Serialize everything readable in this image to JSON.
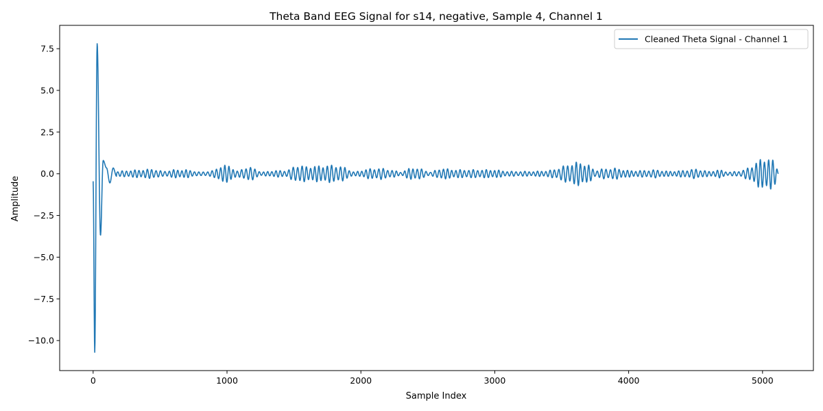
{
  "chart_data": {
    "type": "line",
    "title": "Theta Band EEG Signal for s14, negative, Sample 4, Channel 1",
    "xlabel": "Sample Index",
    "ylabel": "Amplitude",
    "xlim": [
      -250,
      5380
    ],
    "ylim": [
      -11.8,
      8.9
    ],
    "x_ticks": [
      0,
      1000,
      2000,
      3000,
      4000,
      5000
    ],
    "x_tick_labels": [
      "0",
      "1000",
      "2000",
      "3000",
      "4000",
      "5000"
    ],
    "y_ticks": [
      -10.0,
      -7.5,
      -5.0,
      -2.5,
      0.0,
      2.5,
      5.0,
      7.5
    ],
    "y_tick_labels": [
      "−10.0",
      "−7.5",
      "−5.0",
      "−2.5",
      "0.0",
      "2.5",
      "5.0",
      "7.5"
    ],
    "grid": false,
    "legend_position": "top-right",
    "series": [
      {
        "name": "Cleaned Theta Signal - Channel 1",
        "color": "#1f77b4",
        "x_range": [
          0,
          5119
        ],
        "n_points": 5120,
        "sampling": "approximate envelope reconstruction",
        "anchor_points": [
          [
            0,
            -0.45
          ],
          [
            12,
            -10.7
          ],
          [
            30,
            7.8
          ],
          [
            55,
            -3.7
          ],
          [
            75,
            0.8
          ],
          [
            100,
            0.35
          ],
          [
            125,
            -0.55
          ],
          [
            150,
            0.35
          ],
          [
            175,
            -0.15
          ]
        ],
        "oscillation_period_samples": 32,
        "envelope": [
          [
            180,
            0.15
          ],
          [
            250,
            0.2
          ],
          [
            350,
            0.25
          ],
          [
            450,
            0.3
          ],
          [
            520,
            0.15
          ],
          [
            600,
            0.25
          ],
          [
            700,
            0.25
          ],
          [
            800,
            0.1
          ],
          [
            900,
            0.2
          ],
          [
            960,
            0.55
          ],
          [
            1020,
            0.5
          ],
          [
            1080,
            0.15
          ],
          [
            1150,
            0.45
          ],
          [
            1200,
            0.35
          ],
          [
            1260,
            0.1
          ],
          [
            1350,
            0.2
          ],
          [
            1450,
            0.2
          ],
          [
            1520,
            0.55
          ],
          [
            1600,
            0.45
          ],
          [
            1700,
            0.5
          ],
          [
            1800,
            0.55
          ],
          [
            1880,
            0.4
          ],
          [
            1950,
            0.1
          ],
          [
            2050,
            0.3
          ],
          [
            2150,
            0.35
          ],
          [
            2250,
            0.2
          ],
          [
            2300,
            0.1
          ],
          [
            2380,
            0.4
          ],
          [
            2450,
            0.3
          ],
          [
            2520,
            0.1
          ],
          [
            2600,
            0.35
          ],
          [
            2700,
            0.25
          ],
          [
            2800,
            0.25
          ],
          [
            2900,
            0.25
          ],
          [
            3000,
            0.25
          ],
          [
            3100,
            0.15
          ],
          [
            3200,
            0.15
          ],
          [
            3300,
            0.15
          ],
          [
            3400,
            0.2
          ],
          [
            3460,
            0.3
          ],
          [
            3550,
            0.6
          ],
          [
            3630,
            0.75
          ],
          [
            3700,
            0.55
          ],
          [
            3750,
            0.2
          ],
          [
            3800,
            0.3
          ],
          [
            3900,
            0.35
          ],
          [
            4000,
            0.2
          ],
          [
            4100,
            0.2
          ],
          [
            4200,
            0.25
          ],
          [
            4300,
            0.15
          ],
          [
            4400,
            0.2
          ],
          [
            4500,
            0.3
          ],
          [
            4600,
            0.15
          ],
          [
            4680,
            0.25
          ],
          [
            4750,
            0.1
          ],
          [
            4850,
            0.2
          ],
          [
            4920,
            0.5
          ],
          [
            5000,
            1.0
          ],
          [
            5060,
            0.95
          ],
          [
            5100,
            0.7
          ],
          [
            5119,
            0.0
          ]
        ]
      }
    ]
  }
}
